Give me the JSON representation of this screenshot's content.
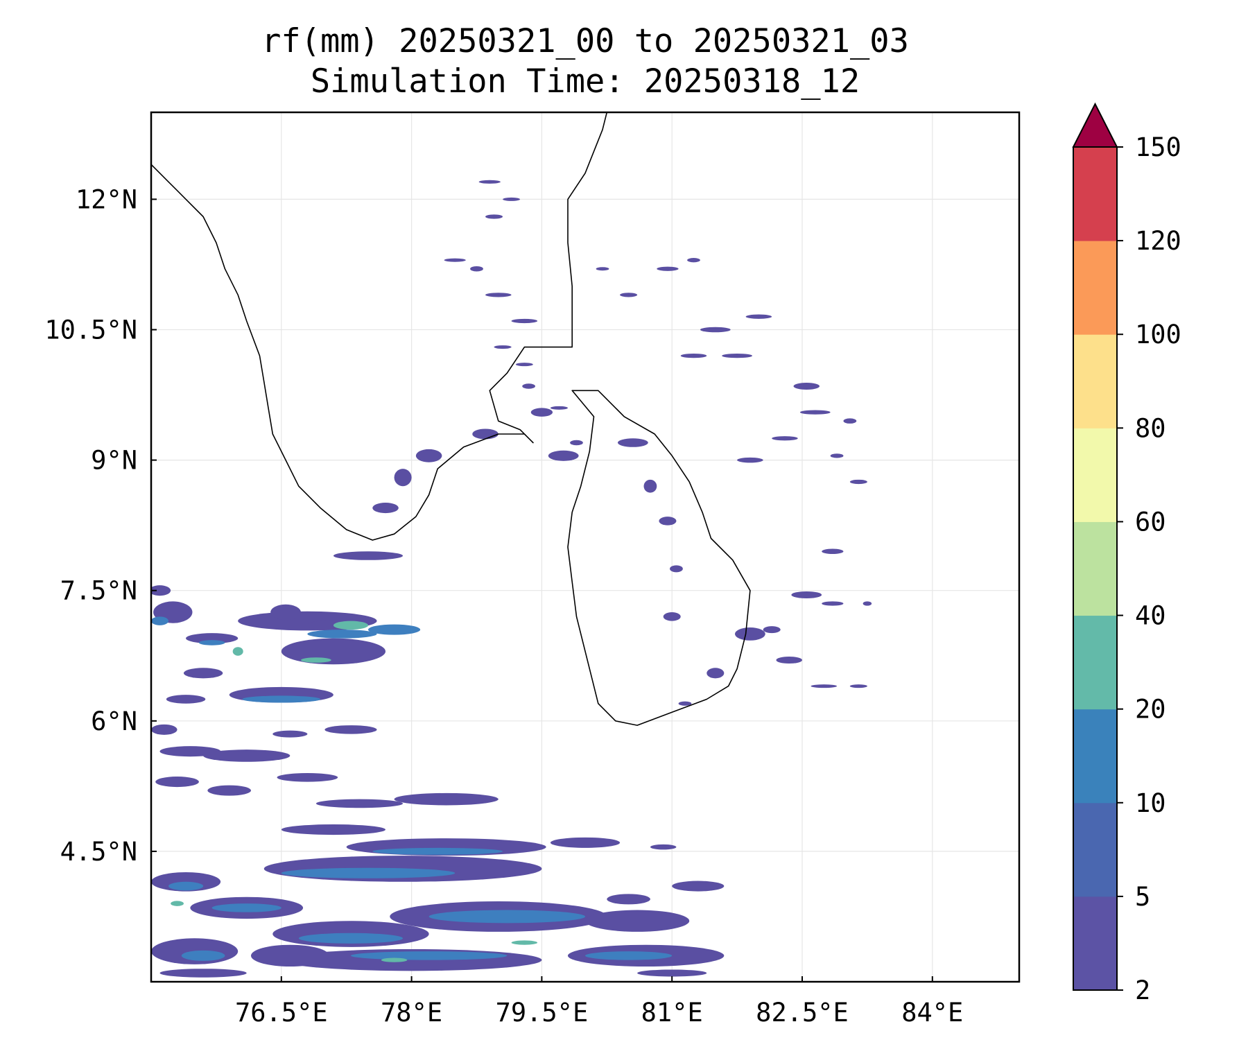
{
  "title": {
    "line1": "rf(mm) 20250321_00 to 20250321_03",
    "line2": "Simulation Time: 20250318_12"
  },
  "map": {
    "lon_range": [
      75.0,
      85.0
    ],
    "lat_range": [
      3.0,
      13.0
    ],
    "lat_ticks": [
      {
        "value": 12.0,
        "label": "12°N"
      },
      {
        "value": 10.5,
        "label": "10.5°N"
      },
      {
        "value": 9.0,
        "label": "9°N"
      },
      {
        "value": 7.5,
        "label": "7.5°N"
      },
      {
        "value": 6.0,
        "label": "6°N"
      },
      {
        "value": 4.5,
        "label": "4.5°N"
      }
    ],
    "lon_ticks": [
      {
        "value": 76.5,
        "label": "76.5°E"
      },
      {
        "value": 78.0,
        "label": "78°E"
      },
      {
        "value": 79.5,
        "label": "79.5°E"
      },
      {
        "value": 81.0,
        "label": "81°E"
      },
      {
        "value": 82.5,
        "label": "82.5°E"
      },
      {
        "value": 84.0,
        "label": "84°E"
      }
    ],
    "coastline_india": [
      [
        75.0,
        12.4
      ],
      [
        75.2,
        12.2
      ],
      [
        75.4,
        12.0
      ],
      [
        75.6,
        11.8
      ],
      [
        75.75,
        11.5
      ],
      [
        75.85,
        11.2
      ],
      [
        76.0,
        10.9
      ],
      [
        76.1,
        10.6
      ],
      [
        76.25,
        10.2
      ],
      [
        76.3,
        9.9
      ],
      [
        76.35,
        9.6
      ],
      [
        76.4,
        9.3
      ],
      [
        76.55,
        9.0
      ],
      [
        76.7,
        8.7
      ],
      [
        76.95,
        8.45
      ],
      [
        77.25,
        8.2
      ],
      [
        77.55,
        8.08
      ],
      [
        77.8,
        8.15
      ],
      [
        78.05,
        8.35
      ],
      [
        78.2,
        8.6
      ],
      [
        78.3,
        8.9
      ],
      [
        78.6,
        9.15
      ],
      [
        79.0,
        9.3
      ],
      [
        79.3,
        9.3
      ],
      [
        79.4,
        9.2
      ],
      [
        79.25,
        9.35
      ],
      [
        79.0,
        9.45
      ],
      [
        78.9,
        9.8
      ],
      [
        79.1,
        10.0
      ],
      [
        79.3,
        10.3
      ],
      [
        79.85,
        10.3
      ],
      [
        79.85,
        10.6
      ],
      [
        79.85,
        11.0
      ],
      [
        79.8,
        11.5
      ],
      [
        79.8,
        12.0
      ],
      [
        80.0,
        12.3
      ],
      [
        80.2,
        12.8
      ],
      [
        80.25,
        13.0
      ]
    ],
    "coastline_srilanka": [
      [
        79.85,
        9.8
      ],
      [
        80.15,
        9.8
      ],
      [
        80.45,
        9.5
      ],
      [
        80.8,
        9.3
      ],
      [
        81.0,
        9.05
      ],
      [
        81.2,
        8.75
      ],
      [
        81.35,
        8.4
      ],
      [
        81.45,
        8.1
      ],
      [
        81.7,
        7.85
      ],
      [
        81.9,
        7.5
      ],
      [
        81.85,
        7.0
      ],
      [
        81.75,
        6.6
      ],
      [
        81.65,
        6.4
      ],
      [
        81.4,
        6.25
      ],
      [
        81.0,
        6.1
      ],
      [
        80.6,
        5.95
      ],
      [
        80.35,
        6.0
      ],
      [
        80.15,
        6.2
      ],
      [
        80.05,
        6.6
      ],
      [
        79.9,
        7.2
      ],
      [
        79.85,
        7.6
      ],
      [
        79.8,
        8.0
      ],
      [
        79.85,
        8.4
      ],
      [
        79.95,
        8.7
      ],
      [
        80.05,
        9.1
      ],
      [
        80.1,
        9.5
      ],
      [
        79.85,
        9.8
      ]
    ],
    "rain_cells": [
      [
        78.9,
        12.2,
        0.25,
        0.04,
        "l1"
      ],
      [
        79.15,
        12.0,
        0.2,
        0.04,
        "l1"
      ],
      [
        78.95,
        11.8,
        0.2,
        0.05,
        "l1"
      ],
      [
        78.75,
        11.2,
        0.15,
        0.06,
        "l1"
      ],
      [
        78.5,
        11.3,
        0.25,
        0.04,
        "l1"
      ],
      [
        79.0,
        10.9,
        0.3,
        0.05,
        "l1"
      ],
      [
        79.3,
        10.6,
        0.3,
        0.05,
        "l1"
      ],
      [
        79.05,
        10.3,
        0.2,
        0.04,
        "l1"
      ],
      [
        79.3,
        10.1,
        0.2,
        0.04,
        "l1"
      ],
      [
        78.85,
        9.3,
        0.3,
        0.12,
        "l1"
      ],
      [
        79.5,
        9.55,
        0.25,
        0.1,
        "l1"
      ],
      [
        79.75,
        9.05,
        0.35,
        0.12,
        "l1"
      ],
      [
        79.9,
        9.2,
        0.15,
        0.06,
        "l1"
      ],
      [
        78.2,
        9.05,
        0.3,
        0.15,
        "l1"
      ],
      [
        77.9,
        8.8,
        0.2,
        0.2,
        "l1"
      ],
      [
        77.7,
        8.45,
        0.3,
        0.12,
        "l1"
      ],
      [
        77.5,
        7.9,
        0.8,
        0.1,
        "l1"
      ],
      [
        79.35,
        9.85,
        0.15,
        0.06,
        "l1"
      ],
      [
        80.55,
        9.2,
        0.35,
        0.1,
        "l1"
      ],
      [
        80.75,
        8.7,
        0.15,
        0.15,
        "l1"
      ],
      [
        80.95,
        8.3,
        0.2,
        0.1,
        "l1"
      ],
      [
        81.05,
        7.75,
        0.15,
        0.08,
        "l1"
      ],
      [
        81.0,
        7.2,
        0.2,
        0.1,
        "l1"
      ],
      [
        81.9,
        7.0,
        0.35,
        0.15,
        "l1"
      ],
      [
        82.15,
        7.05,
        0.2,
        0.08,
        "l1"
      ],
      [
        81.5,
        6.55,
        0.2,
        0.12,
        "l1"
      ],
      [
        82.55,
        7.45,
        0.35,
        0.08,
        "l1"
      ],
      [
        82.85,
        7.35,
        0.25,
        0.05,
        "l1"
      ],
      [
        83.25,
        7.35,
        0.1,
        0.05,
        "l1"
      ],
      [
        82.35,
        6.7,
        0.3,
        0.08,
        "l1"
      ],
      [
        82.75,
        6.4,
        0.3,
        0.04,
        "l1"
      ],
      [
        83.15,
        6.4,
        0.2,
        0.04,
        "l1"
      ],
      [
        81.15,
        6.2,
        0.15,
        0.05,
        "l1"
      ],
      [
        81.9,
        9.0,
        0.3,
        0.06,
        "l1"
      ],
      [
        82.3,
        9.25,
        0.3,
        0.05,
        "l1"
      ],
      [
        82.65,
        9.55,
        0.35,
        0.05,
        "l1"
      ],
      [
        82.55,
        9.85,
        0.3,
        0.08,
        "l1"
      ],
      [
        83.05,
        9.45,
        0.15,
        0.06,
        "l1"
      ],
      [
        83.15,
        8.75,
        0.2,
        0.05,
        "l1"
      ],
      [
        82.9,
        9.05,
        0.15,
        0.05,
        "l1"
      ],
      [
        82.85,
        7.95,
        0.25,
        0.06,
        "l1"
      ],
      [
        81.5,
        10.5,
        0.35,
        0.06,
        "l1"
      ],
      [
        81.25,
        10.2,
        0.3,
        0.05,
        "l1"
      ],
      [
        81.75,
        10.2,
        0.35,
        0.05,
        "l1"
      ],
      [
        82.0,
        10.65,
        0.3,
        0.05,
        "l1"
      ],
      [
        80.5,
        10.9,
        0.2,
        0.05,
        "l1"
      ],
      [
        80.95,
        11.2,
        0.25,
        0.05,
        "l1"
      ],
      [
        81.25,
        11.3,
        0.15,
        0.05,
        "l1"
      ],
      [
        80.2,
        11.2,
        0.15,
        0.04,
        "l1"
      ],
      [
        79.7,
        9.6,
        0.2,
        0.04,
        "l1"
      ],
      [
        75.7,
        6.95,
        0.6,
        0.12,
        "l1"
      ],
      [
        76.5,
        6.3,
        1.2,
        0.18,
        "l1"
      ],
      [
        77.1,
        6.8,
        1.2,
        0.3,
        "l1"
      ],
      [
        76.8,
        7.15,
        1.6,
        0.22,
        "l1"
      ],
      [
        75.25,
        7.25,
        0.45,
        0.25,
        "l1"
      ],
      [
        75.6,
        6.55,
        0.45,
        0.12,
        "l1"
      ],
      [
        75.4,
        6.25,
        0.45,
        0.1,
        "l1"
      ],
      [
        76.55,
        7.25,
        0.35,
        0.18,
        "l1"
      ],
      [
        77.1,
        7.1,
        0.6,
        0.12,
        "l1"
      ],
      [
        75.1,
        7.5,
        0.25,
        0.12,
        "l1"
      ],
      [
        75.45,
        5.65,
        0.7,
        0.12,
        "l1"
      ],
      [
        75.15,
        5.9,
        0.3,
        0.12,
        "l1"
      ],
      [
        76.1,
        5.6,
        1.0,
        0.14,
        "l1"
      ],
      [
        77.3,
        5.9,
        0.6,
        0.1,
        "l1"
      ],
      [
        76.6,
        5.85,
        0.4,
        0.08,
        "l1"
      ],
      [
        75.3,
        5.3,
        0.5,
        0.12,
        "l1"
      ],
      [
        75.9,
        5.2,
        0.5,
        0.12,
        "l1"
      ],
      [
        76.8,
        5.35,
        0.7,
        0.1,
        "l1"
      ],
      [
        78.4,
        5.1,
        1.2,
        0.14,
        "l1"
      ],
      [
        77.4,
        5.05,
        1.0,
        0.1,
        "l1"
      ],
      [
        77.1,
        4.75,
        1.2,
        0.12,
        "l1"
      ],
      [
        78.4,
        4.55,
        2.3,
        0.2,
        "l1"
      ],
      [
        77.9,
        4.3,
        3.2,
        0.3,
        "l1"
      ],
      [
        80.0,
        4.6,
        0.8,
        0.12,
        "l1"
      ],
      [
        75.4,
        4.15,
        0.8,
        0.22,
        "l1"
      ],
      [
        76.1,
        3.85,
        1.3,
        0.25,
        "l1"
      ],
      [
        77.3,
        3.55,
        1.8,
        0.3,
        "l1"
      ],
      [
        79.0,
        3.75,
        2.5,
        0.35,
        "l1"
      ],
      [
        80.6,
        3.7,
        1.2,
        0.25,
        "l1"
      ],
      [
        78.0,
        3.25,
        3.0,
        0.25,
        "l1"
      ],
      [
        80.7,
        3.3,
        1.8,
        0.25,
        "l1"
      ],
      [
        75.5,
        3.35,
        1.0,
        0.3,
        "l1"
      ],
      [
        76.6,
        3.3,
        0.9,
        0.25,
        "l1"
      ],
      [
        81.3,
        4.1,
        0.6,
        0.12,
        "l1"
      ],
      [
        80.9,
        4.55,
        0.3,
        0.06,
        "l1"
      ],
      [
        80.5,
        3.95,
        0.5,
        0.12,
        "l1"
      ],
      [
        75.6,
        3.1,
        1.0,
        0.1,
        "l1"
      ],
      [
        81.0,
        3.1,
        0.8,
        0.08,
        "l1"
      ],
      [
        77.2,
        7.0,
        0.8,
        0.1,
        "l2"
      ],
      [
        77.8,
        7.05,
        0.6,
        0.12,
        "l2"
      ],
      [
        76.5,
        6.25,
        0.9,
        0.08,
        "l2"
      ],
      [
        75.7,
        6.9,
        0.3,
        0.06,
        "l2"
      ],
      [
        75.1,
        7.15,
        0.2,
        0.1,
        "l2"
      ],
      [
        78.3,
        4.5,
        1.5,
        0.08,
        "l2"
      ],
      [
        77.5,
        4.25,
        2.0,
        0.12,
        "l2"
      ],
      [
        79.1,
        3.75,
        1.8,
        0.15,
        "l2"
      ],
      [
        76.1,
        3.85,
        0.8,
        0.1,
        "l2"
      ],
      [
        77.3,
        3.5,
        1.2,
        0.12,
        "l2"
      ],
      [
        78.2,
        3.3,
        1.8,
        0.1,
        "l2"
      ],
      [
        80.5,
        3.3,
        1.0,
        0.1,
        "l2"
      ],
      [
        75.4,
        4.1,
        0.4,
        0.1,
        "l2"
      ],
      [
        75.6,
        3.3,
        0.5,
        0.12,
        "l2"
      ],
      [
        77.3,
        7.1,
        0.4,
        0.1,
        "l3"
      ],
      [
        76.9,
        6.7,
        0.35,
        0.06,
        "l3"
      ],
      [
        76.0,
        6.8,
        0.12,
        0.1,
        "l3"
      ],
      [
        75.3,
        3.9,
        0.15,
        0.06,
        "l3"
      ],
      [
        79.3,
        3.45,
        0.3,
        0.05,
        "l3"
      ],
      [
        77.8,
        3.25,
        0.3,
        0.05,
        "l3"
      ]
    ],
    "rain_colors": {
      "l1": "#5a4fa2",
      "l2": "#3e7fbf",
      "l3": "#62b9a8"
    }
  },
  "colorbar": {
    "levels": [
      {
        "label": "2",
        "color": "#5c53a5"
      },
      {
        "label": "5",
        "color": "#4a67b0"
      },
      {
        "label": "10",
        "color": "#3a82bb"
      },
      {
        "label": "20",
        "color": "#63baa9"
      },
      {
        "label": "40",
        "color": "#bce29f"
      },
      {
        "label": "60",
        "color": "#f2f9ab"
      },
      {
        "label": "80",
        "color": "#fde08b"
      },
      {
        "label": "100",
        "color": "#fb9a58"
      },
      {
        "label": "120",
        "color": "#d5404e"
      },
      {
        "label": "150",
        "color": null
      }
    ],
    "extend_color": "#9e0142"
  }
}
